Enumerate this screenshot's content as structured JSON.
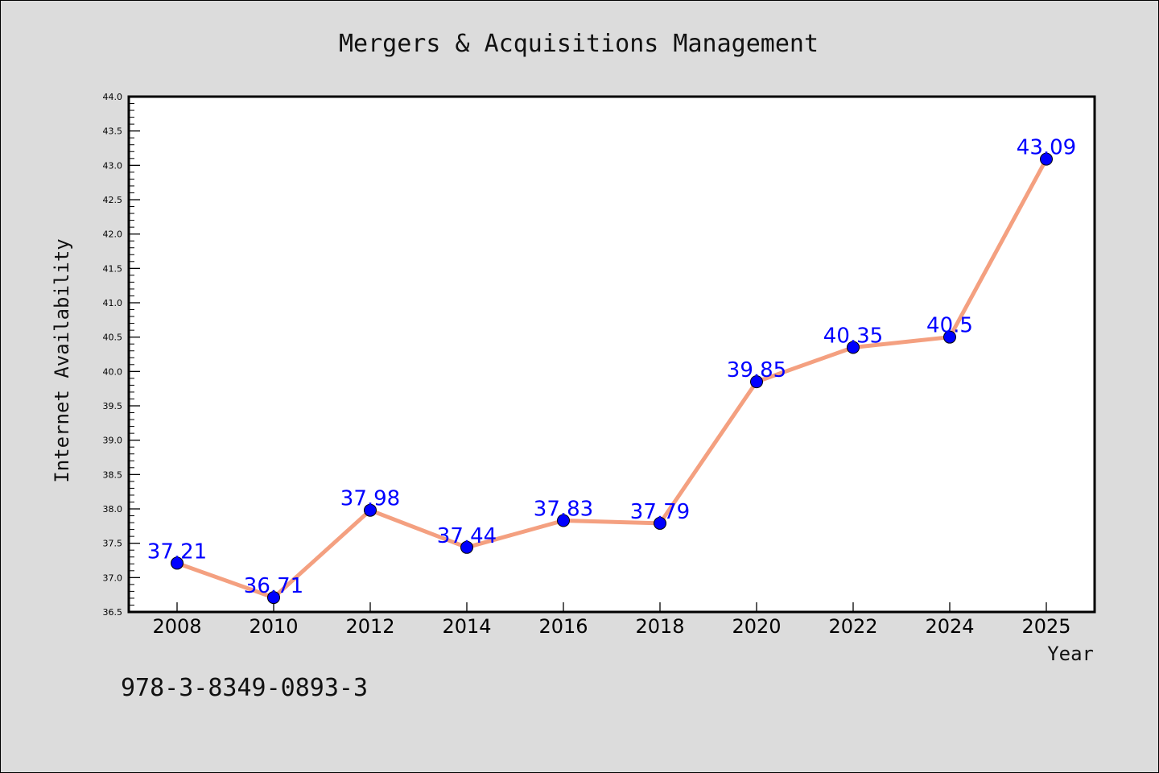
{
  "chart_data": {
    "type": "line",
    "title": "Mergers & Acquisitions Management",
    "xlabel": "Year",
    "ylabel": "Internet Availability",
    "x": [
      "2008",
      "2010",
      "2012",
      "2014",
      "2016",
      "2018",
      "2020",
      "2022",
      "2024",
      "2025"
    ],
    "series": [
      {
        "values": [
          37.21,
          36.71,
          37.98,
          37.44,
          37.83,
          37.79,
          39.85,
          40.35,
          40.5,
          43.09
        ],
        "labels": [
          "37.21",
          "36.71",
          "37.98",
          "37.44",
          "37.83",
          "37.79",
          "39.85",
          "40.35",
          "40.5",
          "43.09"
        ]
      }
    ],
    "ylim": [
      36.5,
      44.0
    ],
    "yticks": [
      "36.5",
      "37.0",
      "37.5",
      "38.0",
      "38.5",
      "39.0",
      "39.5",
      "40.0",
      "40.5",
      "41.0",
      "41.5",
      "42.0",
      "42.5",
      "43.0",
      "43.5",
      "44.0"
    ],
    "grid": false,
    "colors": {
      "line": "#f4a080",
      "marker": "#0000ff",
      "label": "#0000ff",
      "background": "#dcdcdc",
      "plot_background": "#ffffff"
    }
  },
  "footer": {
    "isbn": "978-3-8349-0893-3"
  }
}
